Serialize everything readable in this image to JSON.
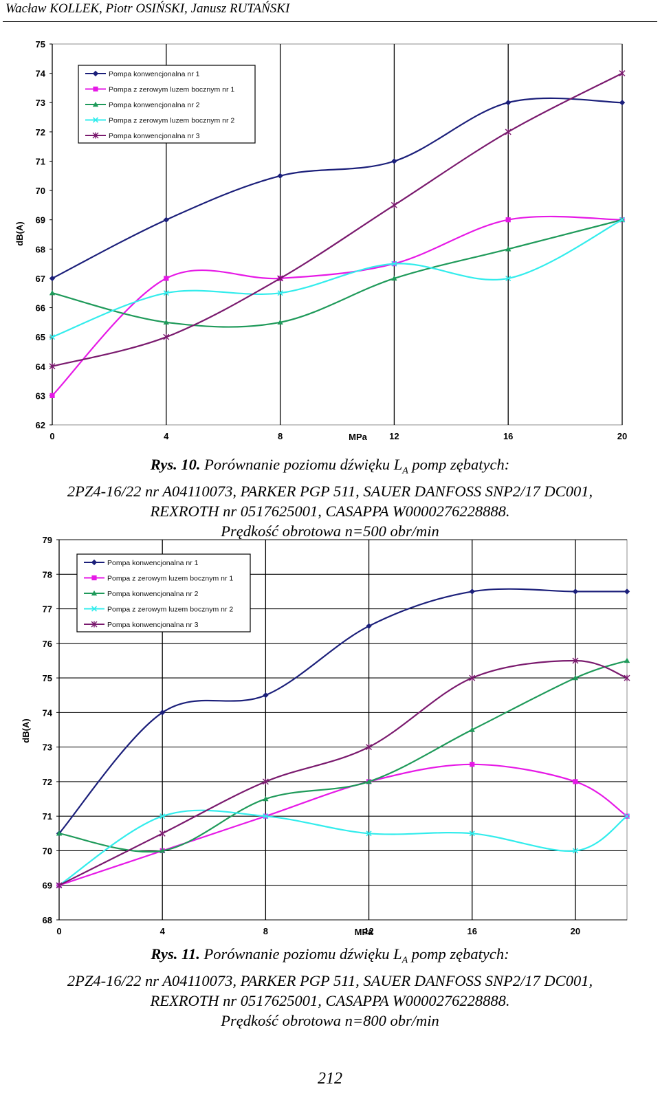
{
  "header": {
    "authors": "Wacław KOLLEK, Piotr OSIŃSKI, Janusz RUTAŃSKI"
  },
  "page_number": "212",
  "series_colors": [
    "#1b1f7a",
    "#e619e6",
    "#1f9a5a",
    "#33ecec",
    "#7a1a6e"
  ],
  "series_markers": [
    "diamond",
    "square",
    "triangle",
    "x",
    "star"
  ],
  "chart_data": [
    {
      "type": "line",
      "xlabel": "MPa",
      "ylabel": "dB(A)",
      "x": [
        0,
        4,
        8,
        12,
        16,
        20
      ],
      "x_tick_labels": [
        "0",
        "4",
        "8",
        "12",
        "16",
        "20"
      ],
      "ylim": [
        62,
        75
      ],
      "y_ticks": [
        "62",
        "63",
        "64",
        "65",
        "66",
        "67",
        "68",
        "69",
        "70",
        "71",
        "72",
        "73",
        "74",
        "75"
      ],
      "grid": "vertical",
      "legend": "top-left",
      "series": [
        {
          "name": "Pompa konwencjonalna nr 1",
          "values": [
            67,
            69,
            70.5,
            71,
            73,
            73
          ]
        },
        {
          "name": "Pompa z zerowym luzem bocznym nr 1",
          "values": [
            63,
            67,
            67,
            67.5,
            69,
            69
          ]
        },
        {
          "name": "Pompa konwencjonalna nr 2",
          "values": [
            66.5,
            65.5,
            65.5,
            67,
            68,
            69
          ]
        },
        {
          "name": "Pompa z zerowym luzem bocznym nr 2",
          "values": [
            65,
            66.5,
            66.5,
            67.5,
            67,
            69
          ]
        },
        {
          "name": "Pompa konwencjonalna nr 3",
          "values": [
            64,
            65,
            67,
            69.5,
            72,
            74
          ]
        }
      ]
    },
    {
      "type": "line",
      "xlabel": "MPa",
      "ylabel": "dB(A)",
      "x": [
        0,
        4,
        8,
        12,
        16,
        20,
        22
      ],
      "x_tick_labels": [
        "0",
        "4",
        "8",
        "12",
        "16",
        "20"
      ],
      "ylim": [
        68,
        79
      ],
      "y_ticks": [
        "68",
        "69",
        "70",
        "71",
        "72",
        "73",
        "74",
        "75",
        "76",
        "77",
        "78",
        "79"
      ],
      "grid": "both",
      "legend": "top-left",
      "series": [
        {
          "name": "Pompa konwencjonalna nr 1",
          "values": [
            70.5,
            74,
            74.5,
            76.5,
            77.5,
            77.5,
            77.5
          ]
        },
        {
          "name": "Pompa z zerowym luzem bocznym nr 1",
          "values": [
            69,
            70,
            71,
            72,
            72.5,
            72,
            71
          ]
        },
        {
          "name": "Pompa konwencjonalna nr 2",
          "values": [
            70.5,
            70,
            71.5,
            72,
            73.5,
            75,
            75.5
          ]
        },
        {
          "name": "Pompa z zerowym luzem bocznym nr 2",
          "values": [
            69,
            71,
            71,
            70.5,
            70.5,
            70,
            71
          ]
        },
        {
          "name": "Pompa konwencjonalna nr 3",
          "values": [
            69,
            70.5,
            72,
            73,
            75,
            75.5,
            75
          ]
        }
      ]
    }
  ],
  "captions": [
    {
      "rys": "Rys. 10.",
      "line1_pre": "Porównanie poziomu dźwięku L",
      "line1_sub": "A",
      "line1_post": "pomp zębatych:",
      "line2": "2PZ4-16/22 nr A04110073, PARKER PGP 511, SAUER DANFOSS SNP2/17 DC001,",
      "line3": "REXROTH nr 0517625001, CASAPPA W0000276228888.",
      "line4": "Prędkość obrotowa n=500 obr/min"
    },
    {
      "rys": "Rys. 11.",
      "line1_pre": "Porównanie poziomu dźwięku L",
      "line1_sub": "A",
      "line1_post": "pomp zębatych:",
      "line2": "2PZ4-16/22 nr A04110073, PARKER PGP 511, SAUER DANFOSS SNP2/17 DC001,",
      "line3": "REXROTH nr 0517625001, CASAPPA W0000276228888.",
      "line4": "Prędkość obrotowa n=800 obr/min"
    }
  ]
}
